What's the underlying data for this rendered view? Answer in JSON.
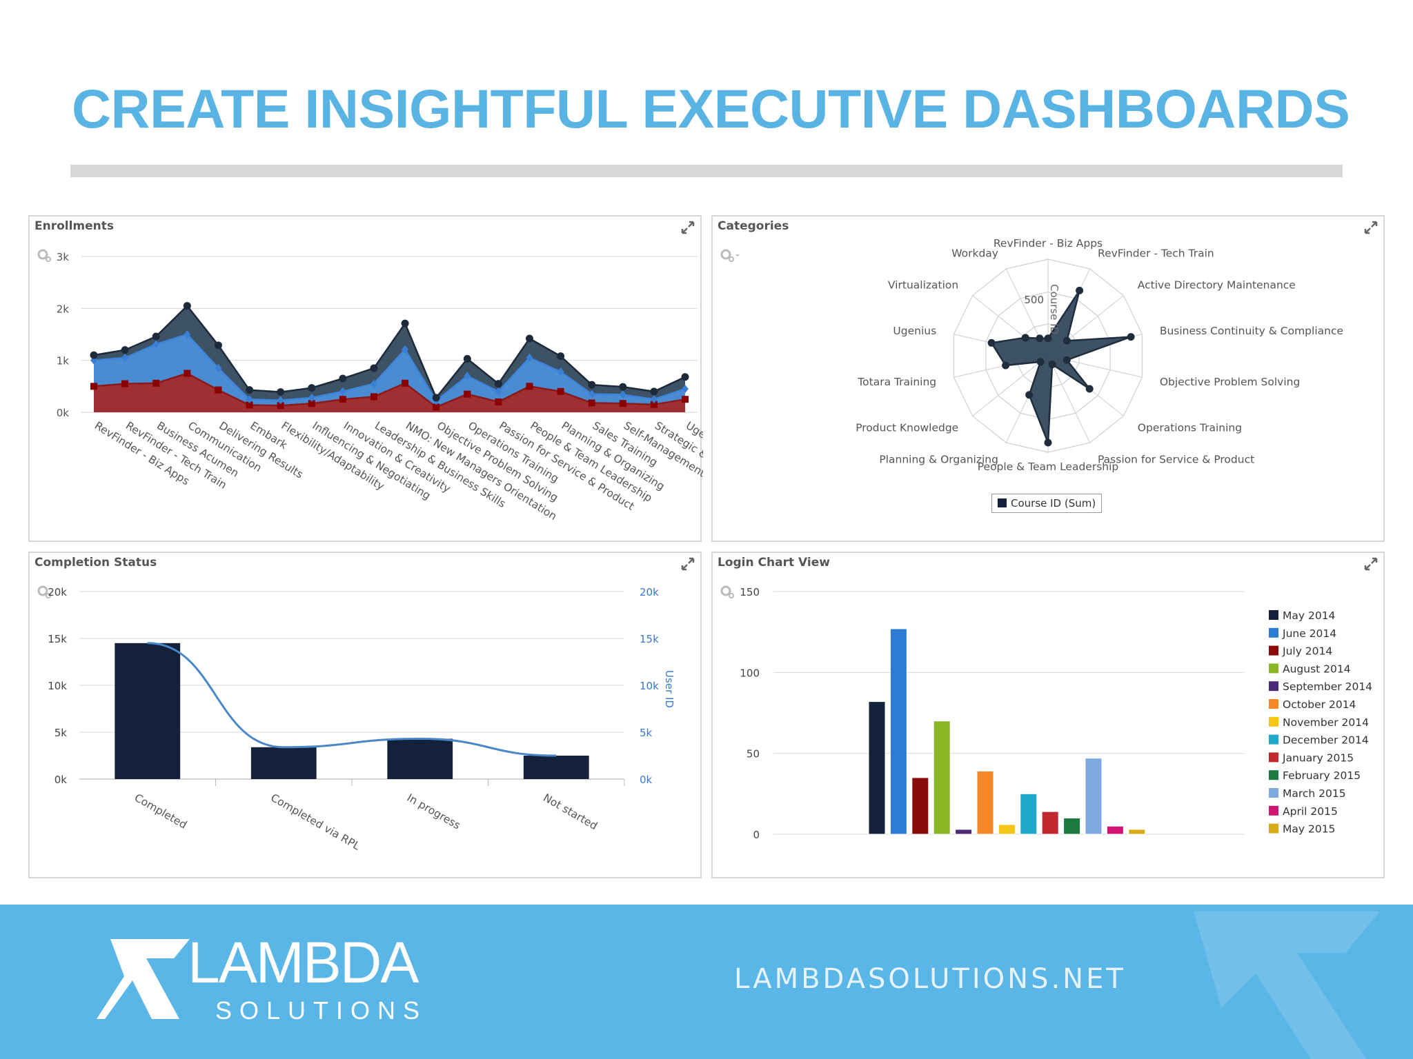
{
  "slide": {
    "title": "CREATE INSIGHTFUL EXECUTIVE DASHBOARDS",
    "footer_url": "LAMBDASOLUTIONS.NET",
    "logo_word": "LAMBDA",
    "logo_sub": "SOLUTIONS",
    "colors": {
      "title": "#5ab4e3",
      "footer": "#5ab6e6",
      "divider": "#d7d8da"
    }
  },
  "panels": {
    "enrollments": {
      "title": "Enrollments",
      "settings_icon": "gear-icon",
      "expand_icon": "expand-icon"
    },
    "categories": {
      "title": "Categories",
      "settings_icon": "gear-icon",
      "expand_icon": "expand-icon"
    },
    "completion": {
      "title": "Completion Status",
      "settings_icon": "gear-icon",
      "expand_icon": "expand-icon"
    },
    "login": {
      "title": "Login Chart View",
      "settings_icon": "gear-icon",
      "expand_icon": "expand-icon"
    }
  },
  "chart_data": [
    {
      "id": "enrollments",
      "type": "area",
      "title": "Enrollments",
      "categories": [
        "RevFinder - Biz Apps",
        "RevFinder - Tech Train",
        "Business Acumen",
        "Communication",
        "Delivering Results",
        "Embark",
        "Flexibility/Adaptability",
        "Influencing & Negotiating",
        "Innovation & Creativity",
        "Leadership & Business Skills",
        "NMO: New Managers Orientation",
        "Objective Problem Solving",
        "Operations Training",
        "Passion for Service & Product",
        "People & Team Leadership",
        "Planning & Organizing",
        "Sales Training",
        "Self-Management",
        "Strategic &",
        "Ugen"
      ],
      "y_ticks": [
        "0k",
        "1k",
        "2k",
        "3k"
      ],
      "ylim": [
        0,
        3000
      ],
      "stacked": true,
      "series": [
        {
          "values": [
            500,
            550,
            560,
            750,
            430,
            140,
            130,
            170,
            250,
            300,
            560,
            100,
            350,
            200,
            500,
            400,
            180,
            170,
            150,
            250
          ],
          "color": "#a52a2a"
        },
        {
          "values": [
            500,
            500,
            750,
            750,
            420,
            110,
            100,
            110,
            150,
            250,
            650,
            120,
            350,
            200,
            550,
            380,
            170,
            170,
            100,
            200
          ],
          "color": "#4a8fd8"
        },
        {
          "values": [
            100,
            150,
            150,
            550,
            440,
            180,
            160,
            190,
            250,
            300,
            500,
            60,
            330,
            150,
            370,
            300,
            180,
            150,
            150,
            230
          ],
          "color": "#34495e"
        }
      ]
    },
    {
      "id": "categories",
      "type": "radar",
      "title": "Categories",
      "axis_label": "Course ID",
      "tick_label": "500",
      "legend": "Course ID (Sum)",
      "series_color": "#34495e",
      "categories": [
        "RevFinder - Biz Apps",
        "RevFinder - Tech Train",
        "Active Directory Maintenance",
        "Business Continuity & Compliance",
        "Objective Problem Solving",
        "Operations Training",
        "Passion for Service & Product",
        "People & Team Leadership",
        "Planning & Organizing",
        "Product Knowledge",
        "Totara Training",
        "Ugenius",
        "Virtualization",
        "Workday"
      ],
      "values": [
        0.18,
        0.75,
        0.25,
        0.88,
        0.2,
        0.55,
        0.1,
        0.9,
        0.45,
        0.1,
        0.45,
        0.6,
        0.3,
        0.2
      ]
    },
    {
      "id": "completion",
      "type": "bar",
      "title": "Completion Status",
      "categories": [
        "Completed",
        "Completed via RPL",
        "In progress",
        "Not started"
      ],
      "values": [
        14500,
        3400,
        4300,
        2500
      ],
      "line_values": [
        14500,
        3400,
        4300,
        2500
      ],
      "y_ticks": [
        "0k",
        "5k",
        "10k",
        "15k",
        "20k"
      ],
      "y2_ticks": [
        "0k",
        "5k",
        "10k",
        "15k",
        "20k"
      ],
      "y2label": "User ID",
      "ylim": [
        0,
        20000
      ],
      "bar_color": "#13223a",
      "line_color": "#4a86c8"
    },
    {
      "id": "login",
      "type": "bar",
      "title": "Login Chart View",
      "y_ticks": [
        "0",
        "50",
        "100",
        "150"
      ],
      "ylim": [
        0,
        150
      ],
      "series": [
        {
          "name": "May 2014",
          "value": 82,
          "color": "#13223a"
        },
        {
          "name": "June 2014",
          "value": 127,
          "color": "#2e7bd4"
        },
        {
          "name": "July 2014",
          "value": 35,
          "color": "#8b0a0a"
        },
        {
          "name": "August 2014",
          "value": 70,
          "color": "#8ab626"
        },
        {
          "name": "September 2014",
          "value": 3,
          "color": "#4b2a78"
        },
        {
          "name": "October 2014",
          "value": 39,
          "color": "#f5892a"
        },
        {
          "name": "November 2014",
          "value": 6,
          "color": "#f5c518"
        },
        {
          "name": "December 2014",
          "value": 25,
          "color": "#1fa8c9"
        },
        {
          "name": "January 2015",
          "value": 14,
          "color": "#c0282d"
        },
        {
          "name": "February 2015",
          "value": 10,
          "color": "#1b7a3f"
        },
        {
          "name": "March 2015",
          "value": 47,
          "color": "#7fa8e0"
        },
        {
          "name": "April 2015",
          "value": 5,
          "color": "#d01473"
        },
        {
          "name": "May 2015",
          "value": 3,
          "color": "#d9aa18"
        }
      ]
    }
  ]
}
